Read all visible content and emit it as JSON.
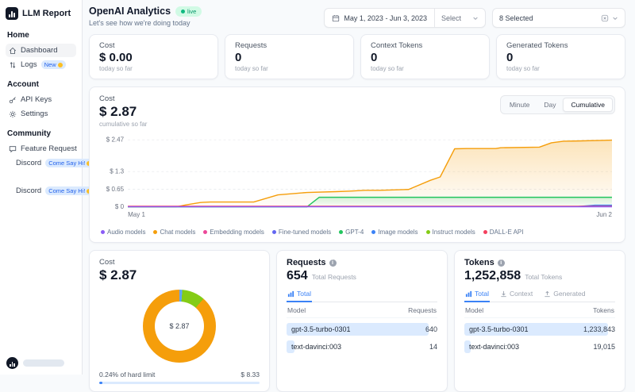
{
  "sidebar": {
    "brand": "LLM Report",
    "sections": [
      {
        "title": "Home",
        "items": [
          {
            "label": "Dashboard",
            "active": true
          },
          {
            "label": "Logs",
            "badge": "New"
          }
        ]
      },
      {
        "title": "Account",
        "items": [
          {
            "label": "API Keys"
          },
          {
            "label": "Settings"
          }
        ]
      },
      {
        "title": "Community",
        "items": [
          {
            "label": "Feature Request"
          },
          {
            "label": "Discord",
            "badge": "Come Say Hi!"
          },
          {
            "label": "Discord",
            "badge": "Come Say Hi!"
          }
        ]
      }
    ]
  },
  "header": {
    "title": "OpenAI Analytics",
    "live_badge": "live",
    "subtitle": "Let's see how we're doing today",
    "date_range": "May 1, 2023 - Jun 3, 2023",
    "select_label": "Select",
    "models_selected": "8 Selected"
  },
  "stats": [
    {
      "label": "Cost",
      "value": "$ 0.00",
      "sub": "today so far"
    },
    {
      "label": "Requests",
      "value": "0",
      "sub": "today so far"
    },
    {
      "label": "Context Tokens",
      "value": "0",
      "sub": "today so far"
    },
    {
      "label": "Generated Tokens",
      "value": "0",
      "sub": "today so far"
    }
  ],
  "cost_chart": {
    "label": "Cost",
    "value": "$ 2.87",
    "sub": "cumulative so far",
    "tabs": [
      "Minute",
      "Day",
      "Cumulative"
    ],
    "active_tab": "Cumulative"
  },
  "chart_data": {
    "type": "area",
    "title": "Cost cumulative so far",
    "total": "$ 2.87",
    "x_ticks": [
      "May 1",
      "Jun 2"
    ],
    "y_ticks": [
      "$ 2.47",
      "$ 1.3",
      "$ 0.65",
      "$ 0"
    ],
    "y_tick_values": [
      2.47,
      1.3,
      0.65,
      0
    ],
    "ymax": 2.56,
    "grid": "dashed-horizontal",
    "legend_position": "bottom-left",
    "series": [
      {
        "name": "Chat models",
        "color": "#f59e0b",
        "fill": true,
        "fill_opacity": 0.28,
        "points": [
          [
            0,
            0
          ],
          [
            0.1,
            0
          ],
          [
            0.12,
            0.07
          ],
          [
            0.15,
            0.16
          ],
          [
            0.17,
            0.18
          ],
          [
            0.26,
            0.18
          ],
          [
            0.31,
            0.44
          ],
          [
            0.37,
            0.53
          ],
          [
            0.43,
            0.56
          ],
          [
            0.46,
            0.58
          ],
          [
            0.49,
            0.61
          ],
          [
            0.52,
            0.61
          ],
          [
            0.58,
            0.64
          ],
          [
            0.625,
            0.98
          ],
          [
            0.645,
            1.1
          ],
          [
            0.675,
            2.14
          ],
          [
            0.7,
            2.15
          ],
          [
            0.76,
            2.15
          ],
          [
            0.77,
            2.18
          ],
          [
            0.85,
            2.2
          ],
          [
            0.875,
            2.36
          ],
          [
            0.9,
            2.42
          ],
          [
            0.93,
            2.43
          ],
          [
            1,
            2.46
          ]
        ]
      },
      {
        "name": "GPT-4",
        "color": "#22c55e",
        "fill": true,
        "fill_opacity": 0.18,
        "points": [
          [
            0,
            0
          ],
          [
            0.37,
            0
          ],
          [
            0.395,
            0.35
          ],
          [
            1,
            0.35
          ]
        ]
      },
      {
        "name": "Image models",
        "color": "#3b82f6",
        "fill": true,
        "fill_opacity": 0.55,
        "points": [
          [
            0,
            0.012
          ],
          [
            0.93,
            0.012
          ],
          [
            0.965,
            0.06
          ],
          [
            1,
            0.06
          ]
        ]
      },
      {
        "name": "DALL-E API",
        "color": "#f43f5e",
        "fill": false,
        "points": [
          [
            0,
            0.022
          ],
          [
            1,
            0.022
          ]
        ]
      },
      {
        "name": "Audio models",
        "color": "#8b5cf6",
        "fill": false,
        "points": [
          [
            0,
            0.004
          ],
          [
            1,
            0.004
          ]
        ]
      }
    ],
    "legend": [
      {
        "label": "Audio models",
        "color": "#8b5cf6"
      },
      {
        "label": "Chat models",
        "color": "#f59e0b"
      },
      {
        "label": "Embedding models",
        "color": "#ec4899"
      },
      {
        "label": "Fine-tuned models",
        "color": "#6366f1"
      },
      {
        "label": "GPT-4",
        "color": "#22c55e"
      },
      {
        "label": "Image models",
        "color": "#3b82f6"
      },
      {
        "label": "Instruct models",
        "color": "#84cc16"
      },
      {
        "label": "DALL-E API",
        "color": "#f43f5e"
      }
    ]
  },
  "donut_card": {
    "label": "Cost",
    "value": "$ 2.87",
    "center": "$ 2.87",
    "segments": [
      {
        "name": "Image models",
        "value": 1.3,
        "color": "#60a5fa"
      },
      {
        "name": "GPT-4",
        "value": 10.2,
        "color": "#84cc16"
      },
      {
        "name": "Chat models",
        "value": 88.5,
        "color": "#f59e0b"
      }
    ],
    "footer_left": "0.24% of hard limit",
    "footer_right": "$ 8.33",
    "progress_pct": 2
  },
  "requests_card": {
    "title": "Requests",
    "value": "654",
    "sub": "Total Requests",
    "tabs": [
      {
        "label": "Total",
        "active": true
      }
    ],
    "columns": [
      "Model",
      "Requests"
    ],
    "rows": [
      {
        "model": "gpt-3.5-turbo-0301",
        "value": "640",
        "bar": 0.94
      },
      {
        "model": "text-davinci:003",
        "value": "14",
        "bar": 0.05
      }
    ]
  },
  "tokens_card": {
    "title": "Tokens",
    "value": "1,252,858",
    "sub": "Total Tokens",
    "tabs": [
      {
        "label": "Total",
        "active": true
      },
      {
        "label": "Context",
        "active": false
      },
      {
        "label": "Generated",
        "active": false
      }
    ],
    "columns": [
      "Model",
      "Tokens"
    ],
    "rows": [
      {
        "model": "gpt-3.5-turbo-0301",
        "value": "1,233,843",
        "bar": 0.95
      },
      {
        "model": "text-davinci:003",
        "value": "19,015",
        "bar": 0.04
      }
    ]
  }
}
